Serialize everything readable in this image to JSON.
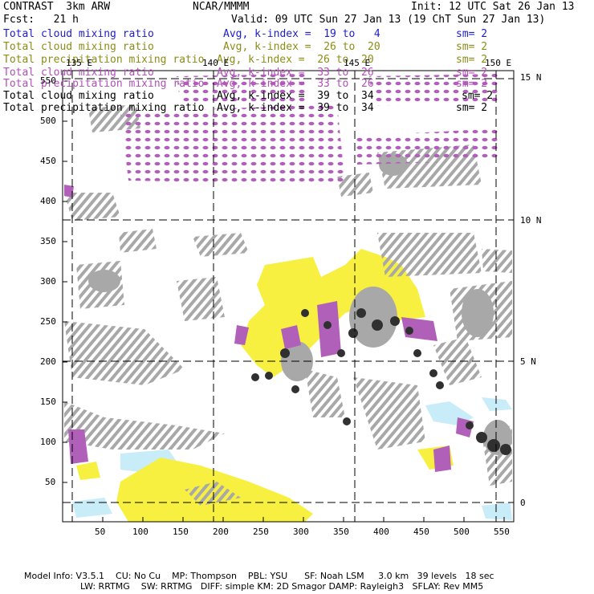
{
  "header": {
    "model": "CONTRAST  3km ARW",
    "org": "NCAR/MMMM",
    "init": "Init: 12 UTC Sat 26 Jan 13",
    "fcst": "Fcst:   21 h",
    "valid": "Valid: 09 UTC Sun 27 Jan 13 (19 ChT Sun 27 Jan 13)"
  },
  "legend": [
    {
      "field": "Total cloud mixing ratio",
      "desc": "Avg, k-index =  19 to   4",
      "sm": "sm= 2",
      "color": "#2020c8"
    },
    {
      "field": "Total cloud mixing ratio",
      "desc": "Avg, k-index =  26 to  20",
      "sm": "sm= 2",
      "color": "#8c8c18"
    },
    {
      "field": "Total precipitation mixing ratio",
      "desc": "Avg, k-index =  26 to  20",
      "sm": "sm= 2",
      "color": "#8c8c18"
    },
    {
      "field": "Total cloud mixing ratio",
      "desc": "Avg, k-index =  33 to  26",
      "sm": "sm= 2",
      "color": "#b050b8"
    },
    {
      "field": "Total precipitation mixing ratio",
      "desc": "Avg, k-index =  33 to  26",
      "sm": "sm= 2",
      "color": "#b050b8"
    },
    {
      "field": "Total cloud mixing ratio",
      "desc": "Avg, k-index =  39 to  34",
      "sm": "sm= 2",
      "color": "#000000"
    },
    {
      "field": "Total precipitation mixing ratio",
      "desc": "Avg, k-index =  39 to  34",
      "sm": "sm= 2",
      "color": "#000000"
    }
  ],
  "map": {
    "x_ticks": [
      "50",
      "100",
      "150",
      "200",
      "250",
      "300",
      "350",
      "400",
      "450",
      "500",
      "550"
    ],
    "y_ticks": [
      "50",
      "100",
      "150",
      "200",
      "250",
      "300",
      "350",
      "400",
      "450",
      "500",
      "550"
    ],
    "lon_labels": [
      "135 E",
      "140 E",
      "145 E",
      "150 E"
    ],
    "lat_labels": [
      "0",
      "5 N",
      "10 N",
      "15 N"
    ],
    "colors": {
      "light_blue": "#c8ecf8",
      "yellow": "#f8f040",
      "purple": "#b060b8",
      "gray": "#a8a8a8",
      "dark": "#303030"
    }
  },
  "footer": {
    "line1": "Model Info: V3.5.1    CU: No Cu    MP: Thompson    PBL: YSU      SF: Noah LSM     3.0 km   39 levels   18 sec",
    "line2": "LW: RRTMG    SW: RRTMG   DIFF: simple KM: 2D Smagor DAMP: Rayleigh3   SFLAY: Rev MM5"
  }
}
